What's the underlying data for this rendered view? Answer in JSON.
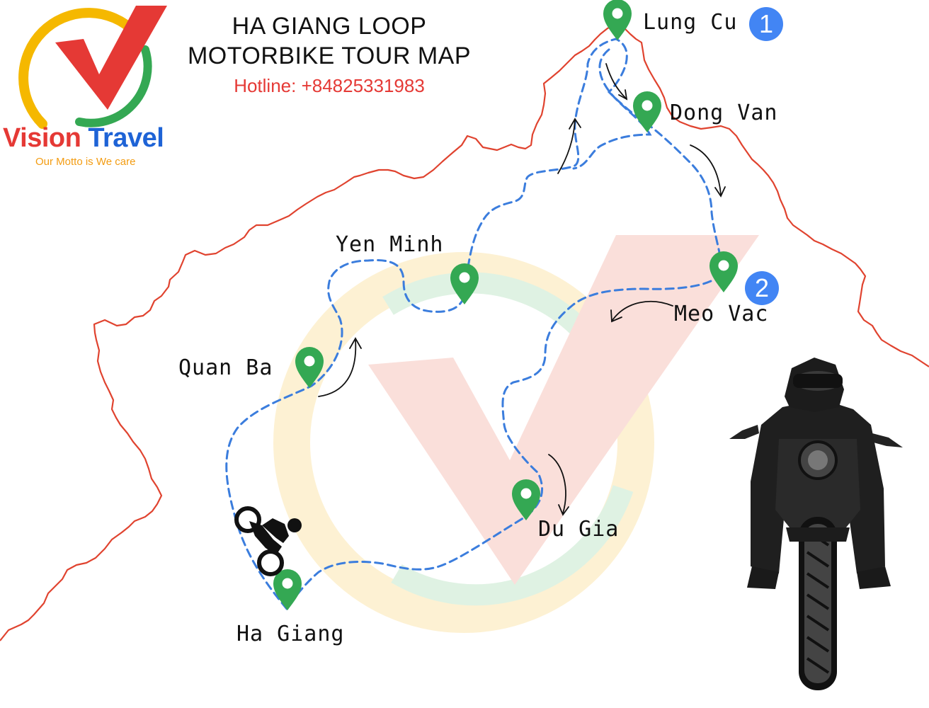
{
  "header": {
    "title_line1": "HA GIANG LOOP",
    "title_line2": "MOTORBIKE TOUR MAP",
    "hotline": "Hotline: +84825331983"
  },
  "logo": {
    "brand_word1": "Vision",
    "brand_word2": "Travel",
    "motto": "Our Motto is We care"
  },
  "places": [
    {
      "id": "lung-cu",
      "name": "Lung Cu"
    },
    {
      "id": "dong-van",
      "name": "Dong Van"
    },
    {
      "id": "yen-minh",
      "name": "Yen Minh"
    },
    {
      "id": "meo-vac",
      "name": "Meo Vac"
    },
    {
      "id": "quan-ba",
      "name": "Quan Ba"
    },
    {
      "id": "du-gia",
      "name": "Du Gia"
    },
    {
      "id": "ha-giang",
      "name": "Ha Giang"
    }
  ],
  "badges": [
    "1",
    "2"
  ],
  "colors": {
    "border": "#e0432f",
    "route": "#3b7ddd",
    "pin": "#34a853",
    "badge": "#4285f4",
    "hotline": "#e53935",
    "brand_red": "#e53935",
    "brand_blue": "#1e63d6",
    "motto": "#f39c12"
  },
  "icons": [
    "location-pin-icon",
    "route-arrow-icon",
    "motorbike-rider-icon",
    "vision-travel-logo"
  ]
}
